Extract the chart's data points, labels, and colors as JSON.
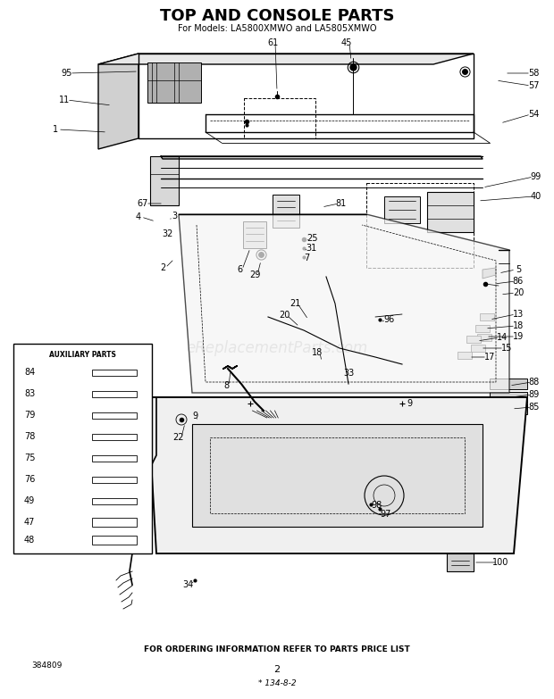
{
  "title": "TOP AND CONSOLE PARTS",
  "subtitle": "For Models: LA5800XMWO and LA5805XMWO",
  "bottom_text": "FOR ORDERING INFORMATION REFER TO PARTS PRICE LIST",
  "bottom_left": "384809",
  "bottom_center": "2",
  "bottom_italic": "* 134-8-2",
  "bg_color": "#ffffff",
  "fig_width": 6.2,
  "fig_height": 7.83,
  "dpi": 100,
  "watermark_text": "eReplacementParts.com",
  "watermark_alpha": 0.15
}
